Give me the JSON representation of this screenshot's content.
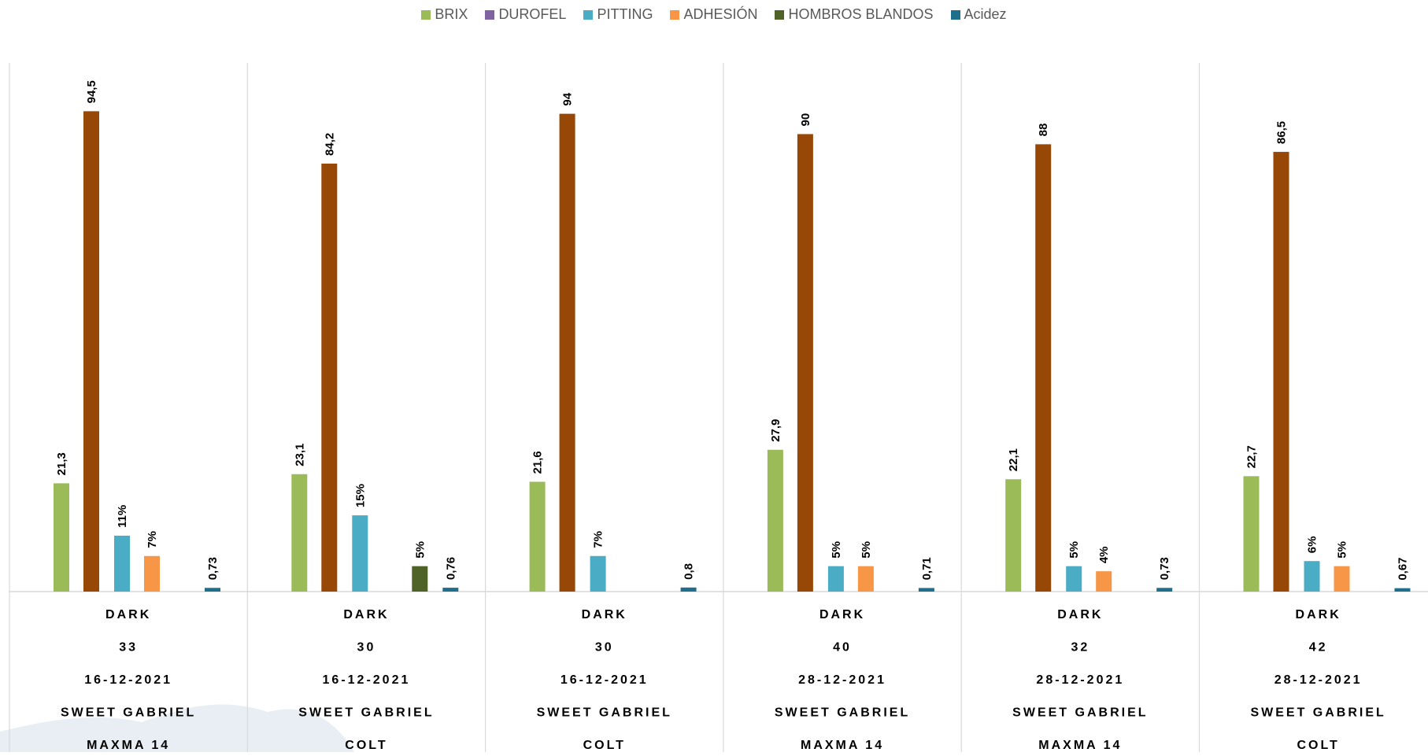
{
  "chart_data": {
    "type": "bar",
    "legend_position": "top",
    "grid": false,
    "ylim": [
      0,
      100
    ],
    "series": [
      {
        "name": "BRIX",
        "color": "#9bbb59",
        "values": [
          21.3,
          23.1,
          21.6,
          27.9,
          22.1,
          22.7
        ],
        "labels": [
          "21,3",
          "23,1",
          "21,6",
          "27,9",
          "22,1",
          "22,7"
        ]
      },
      {
        "name": "DUROFEL",
        "color": "#974706",
        "legend_color": "#8064a2",
        "values": [
          94.5,
          84.2,
          94,
          90,
          88,
          86.5
        ],
        "labels": [
          "94,5",
          "84,2",
          "94",
          "90",
          "88",
          "86,5"
        ]
      },
      {
        "name": "PITTING",
        "color": "#4bacc6",
        "values": [
          11,
          15,
          7,
          5,
          5,
          6
        ],
        "labels": [
          "11%",
          "15%",
          "7%",
          "5%",
          "5%",
          "6%"
        ]
      },
      {
        "name": "ADHESIÓN",
        "color": "#f79646",
        "values": [
          7,
          null,
          null,
          5,
          4,
          5
        ],
        "labels": [
          "7%",
          "",
          "",
          "5%",
          "4%",
          "5%"
        ]
      },
      {
        "name": "HOMBROS BLANDOS",
        "color": "#4f6228",
        "values": [
          null,
          5,
          null,
          null,
          null,
          null
        ],
        "labels": [
          "",
          "5%",
          "",
          "",
          "",
          ""
        ]
      },
      {
        "name": "Acidez",
        "color": "#1f6e8c",
        "values": [
          0.73,
          0.76,
          0.8,
          0.71,
          0.73,
          0.67
        ],
        "labels": [
          "0,73",
          "0,76",
          "0,8",
          "0,71",
          "0,73",
          "0,67"
        ]
      }
    ],
    "categories": [
      [
        "DARK",
        "33",
        "16-12-2021",
        "SWEET GABRIEL",
        "MAXMA 14"
      ],
      [
        "DARK",
        "30",
        "16-12-2021",
        "SWEET GABRIEL",
        "COLT"
      ],
      [
        "DARK",
        "30",
        "16-12-2021",
        "SWEET GABRIEL",
        "COLT"
      ],
      [
        "DARK",
        "40",
        "28-12-2021",
        "SWEET GABRIEL",
        "MAXMA 14"
      ],
      [
        "DARK",
        "32",
        "28-12-2021",
        "SWEET GABRIEL",
        "MAXMA 14"
      ],
      [
        "DARK",
        "42",
        "28-12-2021",
        "SWEET GABRIEL",
        "COLT"
      ]
    ]
  }
}
